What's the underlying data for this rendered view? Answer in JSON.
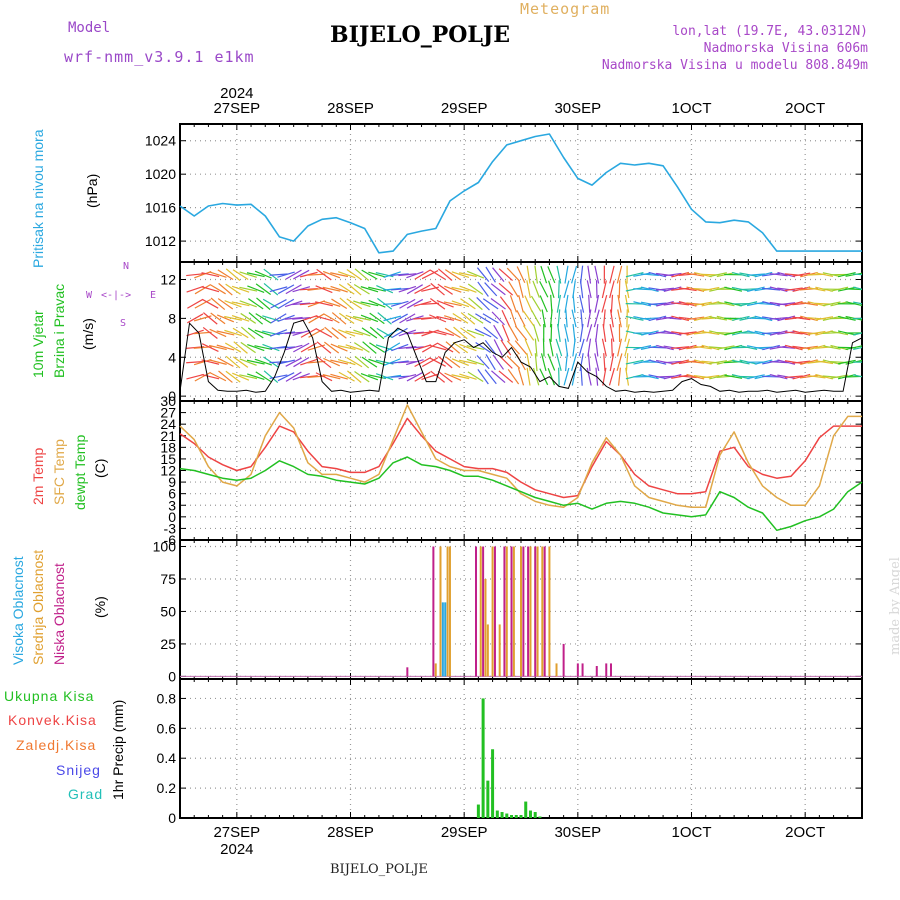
{
  "header": {
    "model_label": "Model",
    "model_name": "wrf-nmm_v3.9.1 e1km",
    "meteogram_label": "Meteogram",
    "station": "BIJELO_POLJE",
    "lonlat": "lon,lat (19.7E, 43.0312N)",
    "altitude": "Nadmorska Visina 606m",
    "model_altitude": "Nadmorska Visina u modelu 808.849m"
  },
  "footer": {
    "station": "BIJELO_POLJE",
    "credit": "made by Angel"
  },
  "colors": {
    "pressure": "#2aa8e0",
    "wind_label": "#22c022",
    "t2m": "#ee4444",
    "tsfc": "#e0a848",
    "dewpt": "#22c022",
    "cloud_high": "#2aa8e0",
    "cloud_mid": "#e0a030",
    "cloud_low": "#c0208a",
    "precip_total": "#22c022",
    "precip_conv": "#ee4444",
    "precip_snow_grain": "#f07830",
    "snow": "#4a48e8",
    "hail": "#22c0b8"
  },
  "chart_data": [
    {
      "type": "line",
      "panel": "pressure",
      "ylabel": [
        "Pritisak na nivou mora",
        "(hPa)"
      ],
      "yticks": [
        1012,
        1016,
        1020,
        1024
      ],
      "ylim": [
        1009.5,
        1026
      ],
      "xlim_hours": [
        0,
        144
      ],
      "top_axis_year": "2024",
      "date_labels": [
        "27SEP",
        "28SEP",
        "29SEP",
        "30SEP",
        "1OCT",
        "2OCT"
      ],
      "grid": "dotted",
      "x_hours": [
        0,
        3,
        6,
        9,
        12,
        15,
        18,
        21,
        24,
        27,
        30,
        33,
        36,
        39,
        42,
        45,
        48,
        51,
        54,
        57,
        60,
        63,
        66,
        69,
        72,
        75,
        78,
        81,
        84,
        87,
        90,
        93,
        96,
        99,
        102,
        105,
        108,
        111,
        114,
        117,
        120,
        123,
        126,
        129,
        132,
        135,
        138,
        141,
        144
      ],
      "values": [
        1016.2,
        1015.0,
        1016.2,
        1016.5,
        1016.3,
        1016.4,
        1015.0,
        1012.5,
        1012.0,
        1013.8,
        1014.6,
        1014.8,
        1014.2,
        1013.5,
        1010.6,
        1010.8,
        1012.8,
        1013.2,
        1013.5,
        1016.8,
        1018.0,
        1019.0,
        1021.5,
        1023.5,
        1024.0,
        1024.5,
        1024.8,
        1022.0,
        1019.5,
        1018.7,
        1020.2,
        1021.3,
        1021.1,
        1021.3,
        1021.0,
        1018.5,
        1015.8,
        1014.3,
        1014.2,
        1014.5,
        1014.3,
        1013.0,
        1010.8,
        1010.8,
        1010.8,
        1010.8,
        1010.8,
        1010.8,
        1010.8
      ]
    },
    {
      "type": "line",
      "panel": "wind",
      "ylabel": [
        "10m Vjetar",
        "Brzina i Pravac",
        "(m/s)"
      ],
      "compass": [
        "N",
        "W",
        "E",
        "S"
      ],
      "yticks": [
        0,
        4,
        8,
        12
      ],
      "ylim": [
        -0.5,
        13.8
      ],
      "grid": "dotted",
      "x_hours": [
        0,
        2,
        4,
        6,
        8,
        10,
        12,
        14,
        16,
        18,
        20,
        22,
        24,
        26,
        28,
        30,
        32,
        34,
        36,
        38,
        40,
        42,
        44,
        46,
        48,
        50,
        52,
        54,
        56,
        58,
        60,
        62,
        64,
        66,
        68,
        70,
        72,
        74,
        76,
        78,
        80,
        82,
        84,
        86,
        88,
        90,
        92,
        94,
        96,
        98,
        100,
        102,
        104,
        106,
        108,
        110,
        112,
        114,
        116,
        118,
        120,
        122,
        124,
        126,
        128,
        130,
        132,
        134,
        136,
        138,
        140,
        142,
        144
      ],
      "values": [
        0.5,
        7.5,
        6.5,
        1.5,
        0.6,
        0.5,
        0.5,
        0.6,
        0.4,
        0.5,
        2.0,
        4.5,
        7.5,
        7.8,
        6.0,
        1.5,
        0.5,
        0.6,
        0.4,
        0.5,
        0.6,
        0.5,
        6.0,
        7.0,
        6.5,
        4.0,
        1.5,
        1.5,
        4.5,
        5.5,
        5.8,
        5.0,
        5.5,
        4.5,
        4.0,
        5.0,
        3.5,
        3.0,
        1.5,
        2.0,
        1.0,
        0.8,
        3.5,
        2.5,
        2.0,
        1.0,
        0.5,
        0.6,
        0.4,
        0.5,
        0.4,
        0.5,
        0.6,
        1.5,
        1.8,
        1.2,
        1.0,
        0.5,
        0.6,
        0.4,
        0.5,
        0.5,
        0.6,
        0.4,
        0.5,
        0.6,
        0.4,
        0.5,
        0.6,
        0.5,
        0.5,
        5.5,
        6.0
      ]
    },
    {
      "type": "line",
      "panel": "temperature",
      "ylabel": [
        "2m Temp",
        "SFC Temp",
        "dewpt Temp",
        "(C)"
      ],
      "yticks": [
        -6,
        -3,
        0,
        3,
        6,
        9,
        12,
        15,
        18,
        21,
        24,
        27,
        30
      ],
      "ylim": [
        -6,
        30
      ],
      "grid": "dotted",
      "x_hours": [
        0,
        3,
        6,
        9,
        12,
        15,
        18,
        21,
        24,
        27,
        30,
        33,
        36,
        39,
        42,
        45,
        48,
        51,
        54,
        57,
        60,
        63,
        66,
        69,
        72,
        75,
        78,
        81,
        84,
        87,
        90,
        93,
        96,
        99,
        102,
        105,
        108,
        111,
        114,
        117,
        120,
        123,
        126,
        129,
        132,
        135,
        138,
        141,
        144
      ],
      "series": [
        {
          "name": "2m Temp",
          "values": [
            21.5,
            19.0,
            15.5,
            13.5,
            12.0,
            13.0,
            18.0,
            23.5,
            22.0,
            17.0,
            13.0,
            12.5,
            11.5,
            11.5,
            13.0,
            19.0,
            25.5,
            21.0,
            17.0,
            15.0,
            13.0,
            12.5,
            12.5,
            11.5,
            9.0,
            7.0,
            6.0,
            5.0,
            5.5,
            13.0,
            19.5,
            16.0,
            11.0,
            8.0,
            7.0,
            6.0,
            6.0,
            6.5,
            17.0,
            18.0,
            13.0,
            11.0,
            10.0,
            10.5,
            14.5,
            20.5,
            23.5,
            23.5,
            23.5
          ]
        },
        {
          "name": "SFC Temp",
          "values": [
            23.5,
            20.0,
            13.0,
            9.0,
            8.0,
            11.0,
            21.0,
            27.0,
            23.0,
            14.0,
            11.0,
            11.0,
            10.0,
            9.0,
            11.0,
            20.0,
            29.0,
            22.0,
            15.0,
            13.0,
            12.0,
            12.0,
            11.0,
            10.0,
            6.0,
            4.0,
            3.0,
            2.5,
            5.0,
            14.0,
            20.5,
            16.0,
            8.0,
            5.0,
            4.0,
            3.0,
            2.5,
            2.5,
            16.0,
            22.0,
            14.0,
            8.0,
            5.0,
            3.0,
            3.0,
            8.0,
            21.0,
            26.0,
            26.0
          ]
        },
        {
          "name": "dewpt Temp",
          "values": [
            12.5,
            12.0,
            11.0,
            10.0,
            9.5,
            10.0,
            12.0,
            14.5,
            13.0,
            11.0,
            10.5,
            9.5,
            9.0,
            8.5,
            10.0,
            14.0,
            15.5,
            13.5,
            13.0,
            12.0,
            10.5,
            10.5,
            9.5,
            8.0,
            6.5,
            5.0,
            4.0,
            3.0,
            3.5,
            2.0,
            3.5,
            4.0,
            3.5,
            2.5,
            1.0,
            0.5,
            0.0,
            0.5,
            6.5,
            5.0,
            2.5,
            1.0,
            -3.5,
            -2.5,
            -1.0,
            0.0,
            2.0,
            6.5,
            9.0
          ]
        }
      ]
    },
    {
      "type": "bar",
      "panel": "cloud",
      "ylabel": [
        "Visoka Oblacnost",
        "Srednja Oblacnost",
        "Niska Oblacnost",
        "(%)"
      ],
      "yticks": [
        0,
        25,
        50,
        75,
        100
      ],
      "ylim": [
        -2,
        105
      ],
      "grid": "dotted",
      "series": [
        {
          "name": "Visoka Oblacnost",
          "x_hours": [
            55.5,
            56.0
          ],
          "values": [
            57,
            57
          ]
        },
        {
          "name": "Srednja Oblacnost",
          "x_hours": [
            54.0,
            55.0,
            56.5,
            57.0,
            63.5,
            64.5,
            65.0,
            66.0,
            67.5,
            69.0,
            70.5,
            72.0,
            74.0,
            75.5,
            76.5,
            78.0,
            79.5
          ],
          "values": [
            10,
            100,
            100,
            100,
            100,
            75,
            40,
            100,
            40,
            100,
            100,
            100,
            100,
            100,
            100,
            100,
            10
          ]
        },
        {
          "name": "Niska Oblacnost",
          "x_hours": [
            48.0,
            53.5,
            62.5,
            64.0,
            66.5,
            68.5,
            70.0,
            72.5,
            73.5,
            75.0,
            77.0,
            81.0,
            84.0,
            85.0,
            88.0,
            90.0,
            91.0
          ],
          "values": [
            7,
            100,
            100,
            100,
            100,
            100,
            100,
            100,
            100,
            100,
            100,
            25,
            10,
            10,
            8,
            10,
            10
          ]
        }
      ]
    },
    {
      "type": "bar",
      "panel": "precip",
      "ylabel": [
        "1hr Precip (mm)"
      ],
      "legend": [
        "Ukupna Kisa",
        "Konvek.Kisa",
        "Zaledj.Kisa",
        "Snijeg",
        "Grad"
      ],
      "yticks": [
        0,
        0.2,
        0.4,
        0.6,
        0.8
      ],
      "ylim": [
        0,
        0.93
      ],
      "grid": "dotted",
      "bottom_axis_year": "2024",
      "x_hours": [
        63,
        64,
        65,
        66,
        67,
        68,
        69,
        70,
        71,
        72,
        73,
        74,
        75,
        76
      ],
      "values": [
        0.09,
        0.8,
        0.25,
        0.46,
        0.05,
        0.04,
        0.03,
        0.02,
        0.02,
        0.02,
        0.11,
        0.05,
        0.04,
        0.01
      ]
    }
  ]
}
